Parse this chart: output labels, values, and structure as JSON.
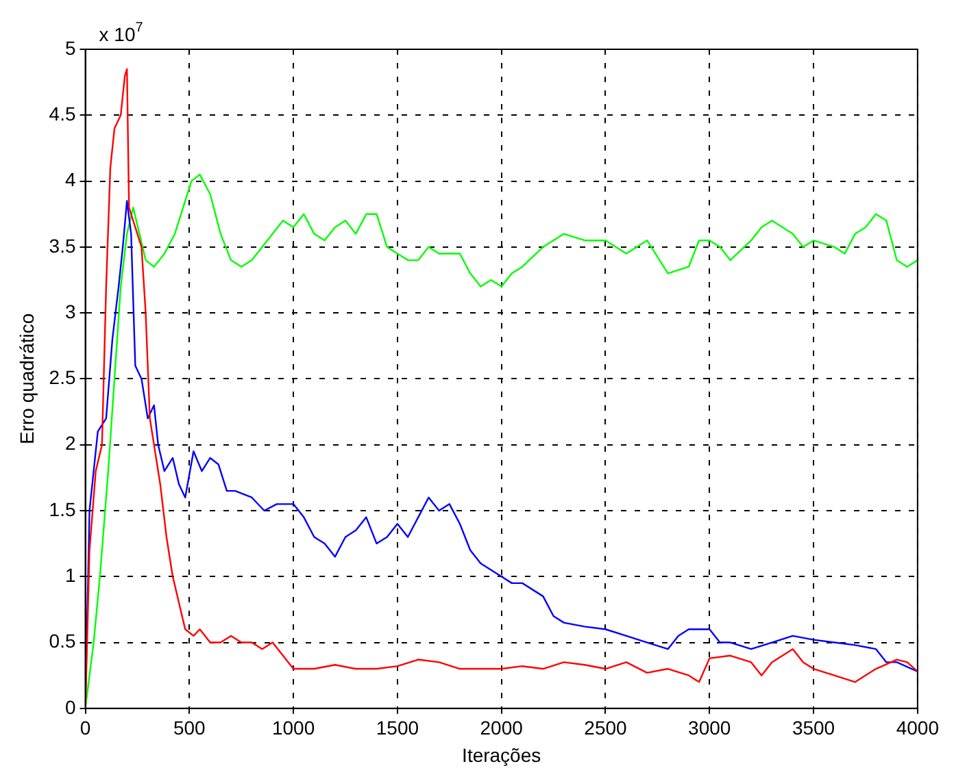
{
  "chart_data": {
    "type": "line",
    "xlabel": "Iterações",
    "ylabel": "Erro quadrático",
    "annotations": [
      "x 10$^{7}$"
    ],
    "xlim": [
      0,
      4000
    ],
    "ylim": [
      0,
      5
    ],
    "xticks": [
      0,
      500,
      1000,
      1500,
      2000,
      2500,
      3000,
      3500,
      4000
    ],
    "yticks": [
      0,
      0.5,
      1,
      1.5,
      2,
      2.5,
      3,
      3.5,
      4,
      4.5,
      5
    ],
    "grid": true,
    "legend": false,
    "marker": "none",
    "line_style": "solid",
    "series": [
      {
        "color": "#ff0000",
        "x": [
          0,
          20,
          50,
          80,
          100,
          120,
          140,
          170,
          190,
          200,
          210,
          230,
          270,
          290,
          310,
          330,
          360,
          390,
          420,
          450,
          480,
          520,
          550,
          600,
          650,
          700,
          750,
          800,
          850,
          900,
          950,
          1000,
          1100,
          1200,
          1300,
          1400,
          1500,
          1600,
          1700,
          1800,
          1900,
          2000,
          2100,
          2200,
          2300,
          2400,
          2500,
          2600,
          2700,
          2800,
          2900,
          2950,
          3000,
          3100,
          3200,
          3250,
          3300,
          3400,
          3450,
          3500,
          3600,
          3700,
          3800,
          3900,
          3950,
          4000
        ],
        "values": [
          0,
          1.2,
          1.8,
          2.0,
          3.2,
          4.1,
          4.4,
          4.5,
          4.8,
          4.85,
          3.8,
          3.7,
          3.5,
          3.0,
          2.2,
          2.0,
          1.7,
          1.3,
          1.0,
          0.8,
          0.6,
          0.55,
          0.6,
          0.5,
          0.5,
          0.55,
          0.5,
          0.5,
          0.45,
          0.5,
          0.4,
          0.3,
          0.3,
          0.33,
          0.3,
          0.3,
          0.32,
          0.37,
          0.35,
          0.3,
          0.3,
          0.3,
          0.32,
          0.3,
          0.35,
          0.33,
          0.3,
          0.35,
          0.27,
          0.3,
          0.25,
          0.2,
          0.38,
          0.4,
          0.35,
          0.25,
          0.35,
          0.45,
          0.35,
          0.3,
          0.25,
          0.2,
          0.3,
          0.37,
          0.35,
          0.28
        ]
      },
      {
        "color": "#0000ff",
        "x": [
          0,
          20,
          40,
          60,
          100,
          130,
          160,
          180,
          200,
          220,
          240,
          270,
          300,
          330,
          350,
          380,
          420,
          450,
          480,
          520,
          560,
          600,
          640,
          680,
          720,
          800,
          860,
          920,
          1000,
          1050,
          1100,
          1150,
          1200,
          1250,
          1300,
          1350,
          1400,
          1450,
          1500,
          1550,
          1600,
          1650,
          1700,
          1750,
          1800,
          1850,
          1900,
          2000,
          2050,
          2100,
          2200,
          2250,
          2300,
          2400,
          2500,
          2600,
          2700,
          2800,
          2850,
          2900,
          3000,
          3050,
          3100,
          3200,
          3300,
          3400,
          3500,
          3600,
          3700,
          3800,
          3850,
          3900,
          4000
        ],
        "values": [
          0,
          1.5,
          1.8,
          2.1,
          2.2,
          2.8,
          3.2,
          3.5,
          3.85,
          3.6,
          2.6,
          2.5,
          2.2,
          2.3,
          2.0,
          1.8,
          1.9,
          1.7,
          1.6,
          1.95,
          1.8,
          1.9,
          1.85,
          1.65,
          1.65,
          1.6,
          1.5,
          1.55,
          1.55,
          1.45,
          1.3,
          1.25,
          1.15,
          1.3,
          1.35,
          1.45,
          1.25,
          1.3,
          1.4,
          1.3,
          1.45,
          1.6,
          1.5,
          1.55,
          1.4,
          1.2,
          1.1,
          1.0,
          0.95,
          0.95,
          0.85,
          0.7,
          0.65,
          0.62,
          0.6,
          0.55,
          0.5,
          0.45,
          0.55,
          0.6,
          0.6,
          0.5,
          0.5,
          0.45,
          0.5,
          0.55,
          0.52,
          0.5,
          0.48,
          0.45,
          0.35,
          0.35,
          0.28
        ]
      },
      {
        "color": "#00ff00",
        "x": [
          0,
          40,
          70,
          110,
          140,
          170,
          200,
          230,
          260,
          290,
          330,
          380,
          430,
          470,
          510,
          550,
          600,
          650,
          700,
          750,
          800,
          850,
          900,
          950,
          1000,
          1050,
          1100,
          1150,
          1200,
          1250,
          1300,
          1350,
          1400,
          1450,
          1500,
          1550,
          1600,
          1650,
          1700,
          1750,
          1800,
          1850,
          1900,
          1950,
          2000,
          2050,
          2100,
          2200,
          2300,
          2400,
          2500,
          2550,
          2600,
          2700,
          2800,
          2900,
          2950,
          3000,
          3050,
          3100,
          3200,
          3250,
          3300,
          3400,
          3450,
          3500,
          3600,
          3650,
          3700,
          3750,
          3800,
          3850,
          3900,
          3950,
          4000
        ],
        "values": [
          0,
          0.5,
          1.0,
          1.8,
          2.5,
          3.2,
          3.6,
          3.8,
          3.6,
          3.4,
          3.35,
          3.45,
          3.6,
          3.8,
          4.0,
          4.05,
          3.9,
          3.6,
          3.4,
          3.35,
          3.4,
          3.5,
          3.6,
          3.7,
          3.65,
          3.75,
          3.6,
          3.55,
          3.65,
          3.7,
          3.6,
          3.75,
          3.75,
          3.5,
          3.45,
          3.4,
          3.4,
          3.5,
          3.45,
          3.45,
          3.45,
          3.3,
          3.2,
          3.25,
          3.2,
          3.3,
          3.35,
          3.5,
          3.6,
          3.55,
          3.55,
          3.5,
          3.45,
          3.55,
          3.3,
          3.35,
          3.55,
          3.55,
          3.5,
          3.4,
          3.55,
          3.65,
          3.7,
          3.6,
          3.5,
          3.55,
          3.5,
          3.45,
          3.6,
          3.65,
          3.75,
          3.7,
          3.4,
          3.35,
          3.4
        ]
      }
    ]
  }
}
